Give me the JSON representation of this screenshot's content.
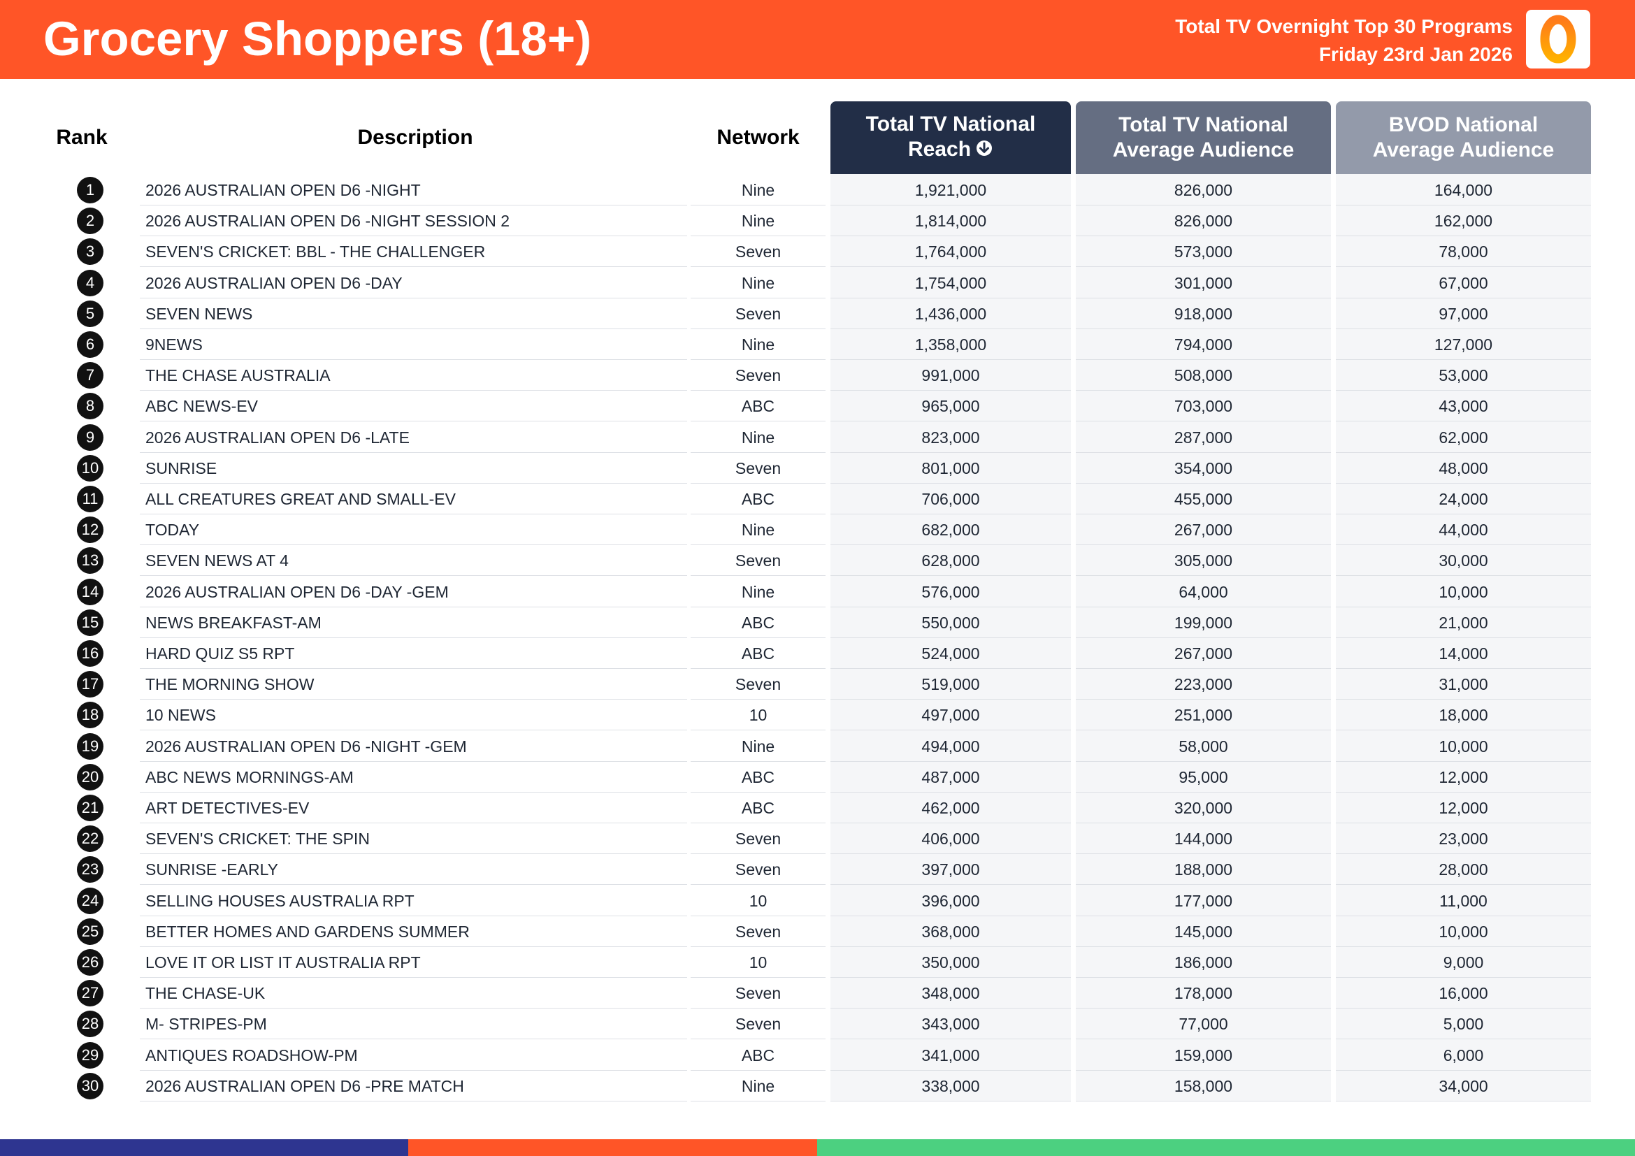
{
  "header": {
    "title": "Grocery Shoppers (18+)",
    "subtitle_line1": "Total TV Overnight Top 30 Programs",
    "subtitle_line2": "Friday 23rd Jan 2026",
    "logo_icon": "oztam-logo-icon",
    "accent_color": "#ff5527"
  },
  "columns": {
    "rank": "Rank",
    "description": "Description",
    "network": "Network",
    "reach_line1": "Total TV National",
    "reach_line2": "Reach",
    "avg_line1": "Total TV National",
    "avg_line2": "Average Audience",
    "bvod_line1": "BVOD National",
    "bvod_line2": "Average Audience",
    "sort_icon": "arrow-down-circle-icon"
  },
  "rows": [
    {
      "rank": "1",
      "description": "2026 AUSTRALIAN OPEN D6 -NIGHT",
      "network": "Nine",
      "reach": "1,921,000",
      "avg": "826,000",
      "bvod": "164,000"
    },
    {
      "rank": "2",
      "description": "2026 AUSTRALIAN OPEN D6 -NIGHT SESSION 2",
      "network": "Nine",
      "reach": "1,814,000",
      "avg": "826,000",
      "bvod": "162,000"
    },
    {
      "rank": "3",
      "description": "SEVEN'S CRICKET: BBL - THE CHALLENGER",
      "network": "Seven",
      "reach": "1,764,000",
      "avg": "573,000",
      "bvod": "78,000"
    },
    {
      "rank": "4",
      "description": "2026 AUSTRALIAN OPEN D6 -DAY",
      "network": "Nine",
      "reach": "1,754,000",
      "avg": "301,000",
      "bvod": "67,000"
    },
    {
      "rank": "5",
      "description": "SEVEN NEWS",
      "network": "Seven",
      "reach": "1,436,000",
      "avg": "918,000",
      "bvod": "97,000"
    },
    {
      "rank": "6",
      "description": "9NEWS",
      "network": "Nine",
      "reach": "1,358,000",
      "avg": "794,000",
      "bvod": "127,000"
    },
    {
      "rank": "7",
      "description": "THE CHASE AUSTRALIA",
      "network": "Seven",
      "reach": "991,000",
      "avg": "508,000",
      "bvod": "53,000"
    },
    {
      "rank": "8",
      "description": "ABC NEWS-EV",
      "network": "ABC",
      "reach": "965,000",
      "avg": "703,000",
      "bvod": "43,000"
    },
    {
      "rank": "9",
      "description": "2026 AUSTRALIAN OPEN D6 -LATE",
      "network": "Nine",
      "reach": "823,000",
      "avg": "287,000",
      "bvod": "62,000"
    },
    {
      "rank": "10",
      "description": "SUNRISE",
      "network": "Seven",
      "reach": "801,000",
      "avg": "354,000",
      "bvod": "48,000"
    },
    {
      "rank": "11",
      "description": "ALL CREATURES GREAT AND SMALL-EV",
      "network": "ABC",
      "reach": "706,000",
      "avg": "455,000",
      "bvod": "24,000"
    },
    {
      "rank": "12",
      "description": "TODAY",
      "network": "Nine",
      "reach": "682,000",
      "avg": "267,000",
      "bvod": "44,000"
    },
    {
      "rank": "13",
      "description": "SEVEN NEWS AT 4",
      "network": "Seven",
      "reach": "628,000",
      "avg": "305,000",
      "bvod": "30,000"
    },
    {
      "rank": "14",
      "description": "2026 AUSTRALIAN OPEN D6 -DAY -GEM",
      "network": "Nine",
      "reach": "576,000",
      "avg": "64,000",
      "bvod": "10,000"
    },
    {
      "rank": "15",
      "description": "NEWS BREAKFAST-AM",
      "network": "ABC",
      "reach": "550,000",
      "avg": "199,000",
      "bvod": "21,000"
    },
    {
      "rank": "16",
      "description": "HARD QUIZ S5 RPT",
      "network": "ABC",
      "reach": "524,000",
      "avg": "267,000",
      "bvod": "14,000"
    },
    {
      "rank": "17",
      "description": "THE MORNING SHOW",
      "network": "Seven",
      "reach": "519,000",
      "avg": "223,000",
      "bvod": "31,000"
    },
    {
      "rank": "18",
      "description": "10 NEWS",
      "network": "10",
      "reach": "497,000",
      "avg": "251,000",
      "bvod": "18,000"
    },
    {
      "rank": "19",
      "description": "2026 AUSTRALIAN OPEN D6 -NIGHT -GEM",
      "network": "Nine",
      "reach": "494,000",
      "avg": "58,000",
      "bvod": "10,000"
    },
    {
      "rank": "20",
      "description": "ABC NEWS MORNINGS-AM",
      "network": "ABC",
      "reach": "487,000",
      "avg": "95,000",
      "bvod": "12,000"
    },
    {
      "rank": "21",
      "description": "ART DETECTIVES-EV",
      "network": "ABC",
      "reach": "462,000",
      "avg": "320,000",
      "bvod": "12,000"
    },
    {
      "rank": "22",
      "description": "SEVEN'S CRICKET: THE SPIN",
      "network": "Seven",
      "reach": "406,000",
      "avg": "144,000",
      "bvod": "23,000"
    },
    {
      "rank": "23",
      "description": "SUNRISE -EARLY",
      "network": "Seven",
      "reach": "397,000",
      "avg": "188,000",
      "bvod": "28,000"
    },
    {
      "rank": "24",
      "description": "SELLING HOUSES AUSTRALIA RPT",
      "network": "10",
      "reach": "396,000",
      "avg": "177,000",
      "bvod": "11,000"
    },
    {
      "rank": "25",
      "description": "BETTER HOMES AND GARDENS SUMMER",
      "network": "Seven",
      "reach": "368,000",
      "avg": "145,000",
      "bvod": "10,000"
    },
    {
      "rank": "26",
      "description": "LOVE IT OR LIST IT AUSTRALIA RPT",
      "network": "10",
      "reach": "350,000",
      "avg": "186,000",
      "bvod": "9,000"
    },
    {
      "rank": "27",
      "description": "THE CHASE-UK",
      "network": "Seven",
      "reach": "348,000",
      "avg": "178,000",
      "bvod": "16,000"
    },
    {
      "rank": "28",
      "description": "M- STRIPES-PM",
      "network": "Seven",
      "reach": "343,000",
      "avg": "77,000",
      "bvod": "5,000"
    },
    {
      "rank": "29",
      "description": "ANTIQUES ROADSHOW-PM",
      "network": "ABC",
      "reach": "341,000",
      "avg": "159,000",
      "bvod": "6,000"
    },
    {
      "rank": "30",
      "description": "2026 AUSTRALIAN OPEN D6 -PRE MATCH",
      "network": "Nine",
      "reach": "338,000",
      "avg": "158,000",
      "bvod": "34,000"
    }
  ],
  "colors": {
    "reach_header": "#222e47",
    "avg_header": "#656e82",
    "bvod_header": "#939aaa",
    "footer": [
      "#2e3590",
      "#ff5527",
      "#4cd080"
    ]
  }
}
